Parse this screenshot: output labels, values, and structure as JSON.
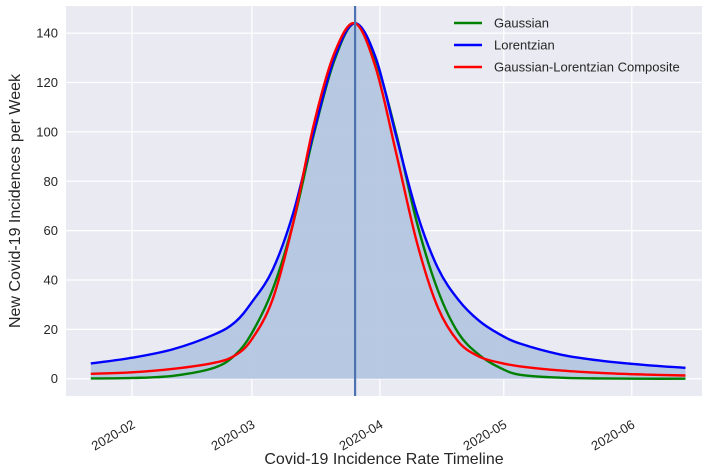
{
  "chart_data": {
    "type": "line",
    "title": "",
    "xlabel": "Covid-19 Incidence Rate Timeline",
    "ylabel": "New Covid-19 Incidences per Week",
    "x_type": "date",
    "x_range": [
      "2020-01-16",
      "2020-06-18"
    ],
    "ylim": [
      -7,
      151
    ],
    "x_ticks": [
      "2020-02",
      "2020-03",
      "2020-04",
      "2020-05",
      "2020-06"
    ],
    "y_ticks": [
      0,
      20,
      40,
      60,
      80,
      100,
      120,
      140
    ],
    "grid": true,
    "legend_position": "top-right",
    "peak_marker_date": "2020-03-26",
    "shaded_area_color": "#b4c6e0",
    "peak_line_color": "#4c72b0",
    "background": "#eaeaf2",
    "series": [
      {
        "name": "Gaussian",
        "color": "#008000",
        "x": [
          "2020-01-22",
          "2020-02-01",
          "2020-02-11",
          "2020-02-21",
          "2020-02-26",
          "2020-03-01",
          "2020-03-06",
          "2020-03-11",
          "2020-03-16",
          "2020-03-21",
          "2020-03-26",
          "2020-03-31",
          "2020-04-05",
          "2020-04-10",
          "2020-04-15",
          "2020-04-20",
          "2020-04-25",
          "2020-04-30",
          "2020-05-05",
          "2020-05-15",
          "2020-05-25",
          "2020-06-04",
          "2020-06-14"
        ],
        "y": [
          0.1,
          0.3,
          1.2,
          4.5,
          9.7,
          18.5,
          36,
          63,
          99,
          129,
          144,
          129,
          99,
          63,
          36,
          18.5,
          9.7,
          4.5,
          1.6,
          0.4,
          0.1,
          0,
          0
        ]
      },
      {
        "name": "Lorentzian",
        "color": "#0000ff",
        "x": [
          "2020-01-22",
          "2020-02-01",
          "2020-02-11",
          "2020-02-21",
          "2020-02-26",
          "2020-03-01",
          "2020-03-06",
          "2020-03-11",
          "2020-03-16",
          "2020-03-21",
          "2020-03-26",
          "2020-03-31",
          "2020-04-05",
          "2020-04-10",
          "2020-04-15",
          "2020-04-20",
          "2020-04-25",
          "2020-04-30",
          "2020-05-05",
          "2020-05-15",
          "2020-05-25",
          "2020-06-04",
          "2020-06-14"
        ],
        "y": [
          6.2,
          8.5,
          12,
          18,
          23,
          31,
          44,
          67,
          100,
          130,
          144,
          130,
          98,
          67,
          45,
          32,
          23.5,
          18,
          14.2,
          9.7,
          7.2,
          5.6,
          4.4
        ]
      },
      {
        "name": "Gaussian-Lorentzian Composite",
        "color": "#ff0000",
        "x": [
          "2020-01-22",
          "2020-02-01",
          "2020-02-11",
          "2020-02-21",
          "2020-02-26",
          "2020-03-01",
          "2020-03-06",
          "2020-03-11",
          "2020-03-16",
          "2020-03-21",
          "2020-03-26",
          "2020-03-31",
          "2020-04-05",
          "2020-04-10",
          "2020-04-15",
          "2020-04-20",
          "2020-04-25",
          "2020-04-30",
          "2020-05-05",
          "2020-05-15",
          "2020-05-25",
          "2020-06-04",
          "2020-06-14"
        ],
        "y": [
          2,
          2.6,
          4,
          6.5,
          9.5,
          16,
          32,
          63,
          103,
          132,
          144,
          126,
          91,
          55,
          29,
          15,
          9,
          6.5,
          5,
          3.3,
          2.3,
          1.7,
          1.3
        ]
      }
    ]
  }
}
